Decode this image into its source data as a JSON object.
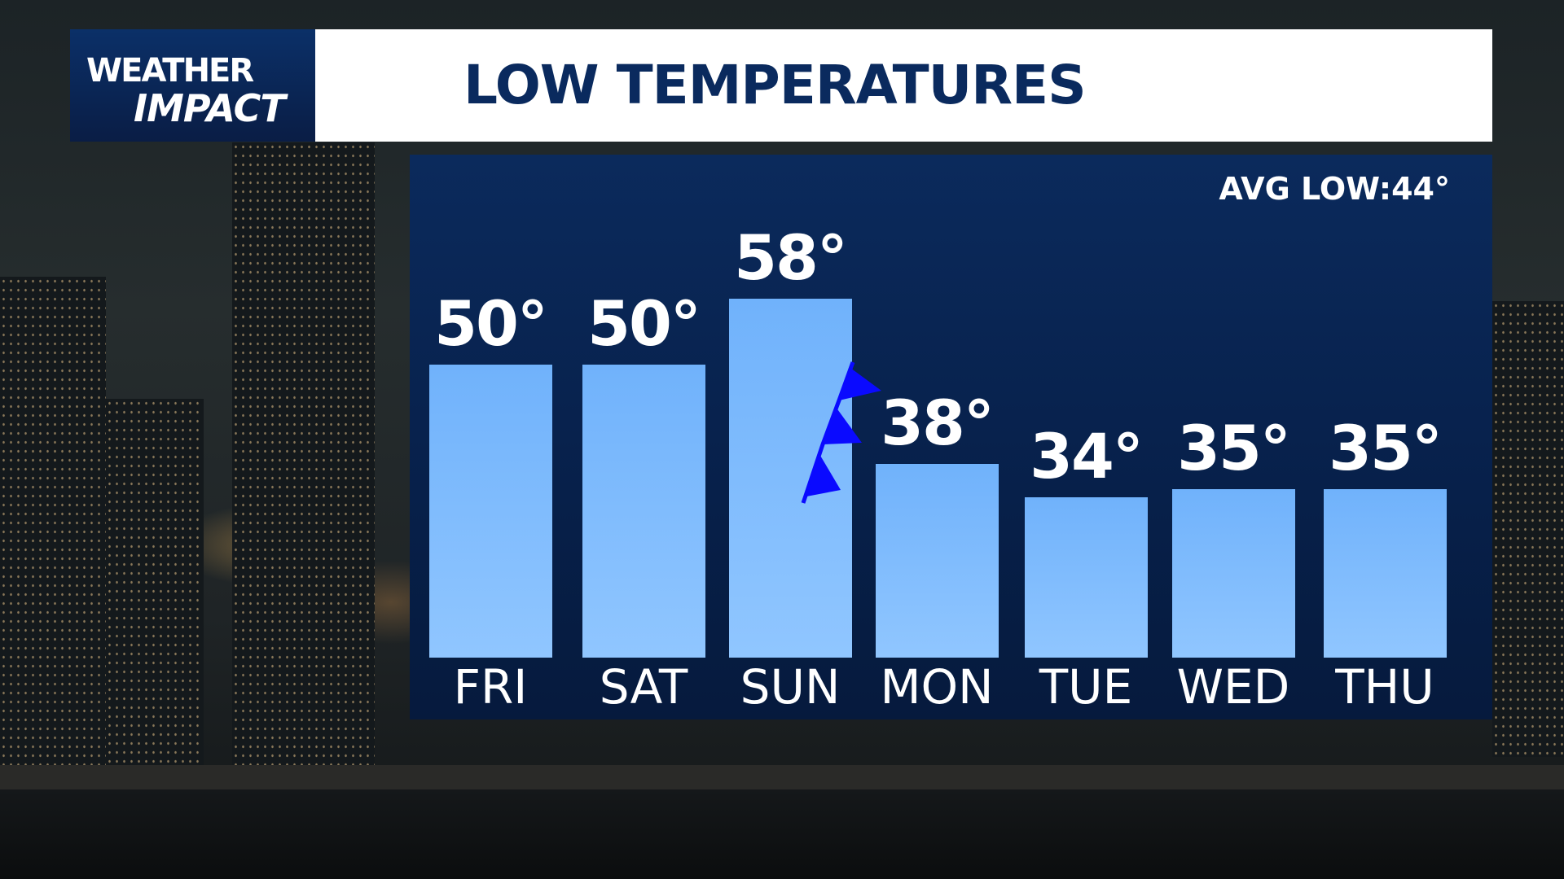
{
  "logo": {
    "line1": "WEATHER",
    "line2": "IMPACT"
  },
  "title": "LOW TEMPERATURES",
  "avg_low": "AVG LOW:44°",
  "colors": {
    "bar": "#7ab8fd",
    "panel": "#0b2a5c",
    "title": "#0a2a5e",
    "cold_front": "#0a0aff"
  },
  "chart_data": {
    "type": "bar",
    "categories": [
      "FRI",
      "SAT",
      "SUN",
      "MON",
      "TUE",
      "WED",
      "THU"
    ],
    "values": [
      50,
      50,
      58,
      38,
      34,
      35,
      35
    ],
    "labels": [
      "50°",
      "50°",
      "58°",
      "38°",
      "34°",
      "35°",
      "35°"
    ],
    "annotation": "cold-front-icon"
  }
}
